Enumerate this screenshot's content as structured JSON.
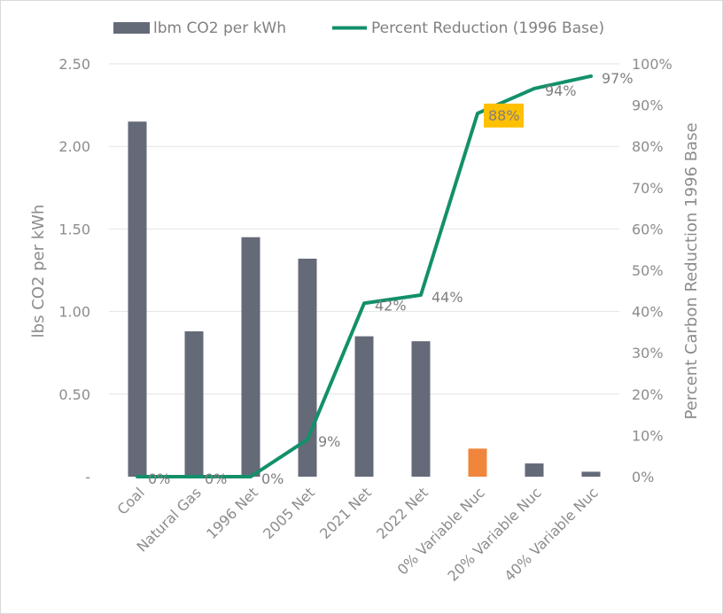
{
  "chart_data": {
    "type": "bar+line",
    "categories": [
      "Coal",
      "Natural Gas",
      "1996 Net",
      "2005 Net",
      "2021 Net",
      "2022 Net",
      "0% Variable Nuc",
      "20% Variable Nuc",
      "40% Variable Nuc"
    ],
    "bar_series": {
      "name": "lbm CO2 per kWh",
      "axis": "left",
      "values": [
        2.15,
        0.88,
        1.45,
        1.32,
        0.85,
        0.82,
        0.17,
        0.08,
        0.03
      ],
      "color": "#646a78",
      "highlight": {
        "index": 6,
        "color": "#f0863c"
      }
    },
    "line_series": {
      "name": "Percent Reduction (1996 Base)",
      "axis": "right",
      "values": [
        0,
        0,
        0,
        9,
        42,
        44,
        88,
        94,
        97
      ],
      "labels": [
        "0%",
        "0%",
        "0%",
        "9%",
        "42%",
        "44%",
        "88%",
        "94%",
        "97%"
      ],
      "highlight_label_index": 6,
      "highlight_label_color": "#ffc000",
      "color": "#13906a"
    },
    "y_left": {
      "label": "lbs CO2 per kWh",
      "range": [
        0,
        2.5
      ],
      "ticks": [
        "-",
        "0.50",
        "1.00",
        "1.50",
        "2.00",
        "2.50"
      ]
    },
    "y_right": {
      "label": "Percent Carbon Reduction 1996 Base",
      "range": [
        0,
        100
      ],
      "ticks": [
        "0%",
        "10%",
        "20%",
        "30%",
        "40%",
        "50%",
        "60%",
        "70%",
        "80%",
        "90%",
        "100%"
      ]
    },
    "grid": true,
    "legend_position": "top"
  }
}
